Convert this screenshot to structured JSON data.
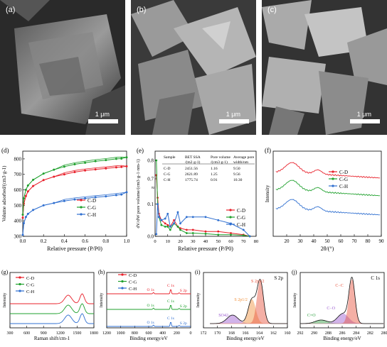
{
  "sem": [
    {
      "label": "(a)",
      "scale": "1 μm"
    },
    {
      "label": "(b)",
      "scale": "1 μm"
    },
    {
      "label": "(c)",
      "scale": "1 μm"
    }
  ],
  "colors": {
    "C-D": "#e8202a",
    "C-G": "#1fa02d",
    "C-H": "#2f6fd0"
  },
  "chart_data": [
    {
      "panel": "(d)",
      "type": "line",
      "xlabel": "Relative pressure (P/P0)",
      "ylabel": "Volume adsorbed/(cm3·g-1)",
      "xlim": [
        0,
        1.0
      ],
      "ylim": [
        300,
        850
      ],
      "xticks": [
        "0.0",
        "0.2",
        "0.4",
        "0.6",
        "0.8",
        "1.0"
      ],
      "yticks": [
        "300",
        "400",
        "500",
        "600",
        "700",
        "800"
      ],
      "legend": [
        "C-D",
        "C-G",
        "C-H"
      ],
      "series": [
        {
          "name": "C-D",
          "x": [
            0.0,
            0.01,
            0.03,
            0.05,
            0.1,
            0.2,
            0.3,
            0.4,
            0.5,
            0.6,
            0.7,
            0.8,
            0.9,
            0.95,
            1.0
          ],
          "y": [
            420,
            510,
            560,
            590,
            625,
            663,
            685,
            700,
            715,
            725,
            732,
            738,
            745,
            748,
            752
          ]
        },
        {
          "name": "C-G",
          "x": [
            0.0,
            0.01,
            0.03,
            0.05,
            0.1,
            0.2,
            0.3,
            0.4,
            0.5,
            0.6,
            0.7,
            0.8,
            0.9,
            0.95,
            1.0
          ],
          "y": [
            440,
            545,
            600,
            628,
            665,
            705,
            730,
            750,
            765,
            775,
            785,
            792,
            800,
            802,
            810
          ]
        },
        {
          "name": "C-H",
          "x": [
            0.0,
            0.01,
            0.03,
            0.05,
            0.1,
            0.2,
            0.3,
            0.4,
            0.5,
            0.6,
            0.7,
            0.8,
            0.9,
            0.95,
            1.0
          ],
          "y": [
            310,
            385,
            425,
            445,
            470,
            500,
            515,
            528,
            538,
            545,
            552,
            558,
            566,
            570,
            585
          ]
        }
      ]
    },
    {
      "panel": "(e)",
      "type": "line",
      "xlabel": "Relative pressure (P/P0)",
      "ylabel": "dV/dW pore volume/(cm3·g-1·nm-1)",
      "xlim": [
        0,
        80
      ],
      "xticks": [
        "0",
        "10",
        "20",
        "30",
        "40",
        "50",
        "60",
        "70",
        "80"
      ],
      "yticks": [
        "0.0",
        "0.1",
        "0.7",
        "0.8"
      ],
      "legend": [
        "C-D",
        "C-G",
        "C-H"
      ],
      "table": {
        "headers": [
          "Sample",
          "BET SSA\n/(m2·g-1)",
          "Pore volume\n/(cm3·g-1)",
          "Average pore\nwidth/nm"
        ],
        "rows": [
          [
            "C-D",
            "2451.56",
            "1.16",
            "9.50"
          ],
          [
            "C-G",
            "2621.89",
            "1.25",
            "9.56"
          ],
          [
            "C-H",
            "1775.74",
            "0.91",
            "10.30"
          ]
        ]
      },
      "series": [
        {
          "name": "C-D",
          "x": [
            1,
            2,
            3,
            5,
            8,
            10,
            12,
            15,
            18,
            20,
            25,
            30,
            40,
            50,
            60,
            70,
            75
          ],
          "y": [
            0.72,
            0.12,
            0.07,
            0.05,
            0.04,
            0.035,
            0.03,
            0.05,
            0.03,
            0.025,
            0.02,
            0.02,
            0.015,
            0.015,
            0.01,
            0.005,
            0.0
          ]
        },
        {
          "name": "C-G",
          "x": [
            1,
            2,
            3,
            5,
            8,
            10,
            12,
            15,
            18,
            20,
            25,
            30,
            40,
            50,
            60,
            70,
            75
          ],
          "y": [
            0.8,
            0.1,
            0.06,
            0.035,
            0.03,
            0.03,
            0.02,
            0.04,
            0.03,
            0.02,
            0.01,
            0.01,
            0.008,
            0.005,
            0.005,
            0.003,
            0.0
          ]
        },
        {
          "name": "C-H",
          "x": [
            1,
            2,
            3,
            5,
            8,
            10,
            12,
            15,
            18,
            20,
            25,
            30,
            40,
            50,
            60,
            70,
            75
          ],
          "y": [
            0.4,
            0.1,
            0.06,
            0.05,
            0.055,
            0.07,
            0.03,
            0.04,
            0.075,
            0.04,
            0.06,
            0.06,
            0.06,
            0.05,
            0.04,
            0.02,
            0.0
          ]
        }
      ]
    },
    {
      "panel": "(f)",
      "type": "line",
      "xlabel": "2θ/(°)",
      "ylabel": "Intensity",
      "xlim": [
        10,
        90
      ],
      "xticks": [
        "20",
        "30",
        "40",
        "50",
        "60",
        "70",
        "80",
        "90"
      ],
      "legend": [
        "C-D",
        "C-G",
        "C-H"
      ]
    },
    {
      "panel": "(g)",
      "type": "line",
      "xlabel": "Raman shift/cm-1",
      "ylabel": "Intensity",
      "xticks": [
        "300",
        "600",
        "900",
        "1200",
        "1500",
        "1800"
      ],
      "legend": [
        "C-D",
        "C-G",
        "C-H"
      ]
    },
    {
      "panel": "(h)",
      "type": "line",
      "xlabel": "Binding energy/eV",
      "ylabel": "Intensity",
      "xticks": [
        "1200",
        "1000",
        "800",
        "600",
        "400",
        "200",
        "0"
      ],
      "legend": [
        "C-D",
        "C-G",
        "C-H"
      ],
      "annotations": [
        "C 1s",
        "O 1s",
        "S 2p"
      ]
    },
    {
      "panel": "(i)",
      "type": "line",
      "title": "S 2p",
      "xlabel": "Binding energy/eV",
      "ylabel": "Intensity",
      "xticks": [
        "172",
        "170",
        "168",
        "166",
        "164",
        "162",
        "160"
      ],
      "annotations": [
        "S 2p3/2",
        "S 2p1/2",
        "SO42-"
      ]
    },
    {
      "panel": "(j)",
      "type": "line",
      "title": "C 1s",
      "xlabel": "Binding energy/eV",
      "ylabel": "Intensity",
      "xticks": [
        "292",
        "290",
        "288",
        "286",
        "284",
        "282",
        "280"
      ],
      "annotations": [
        "C−C",
        "C−O",
        "C=O"
      ]
    }
  ]
}
